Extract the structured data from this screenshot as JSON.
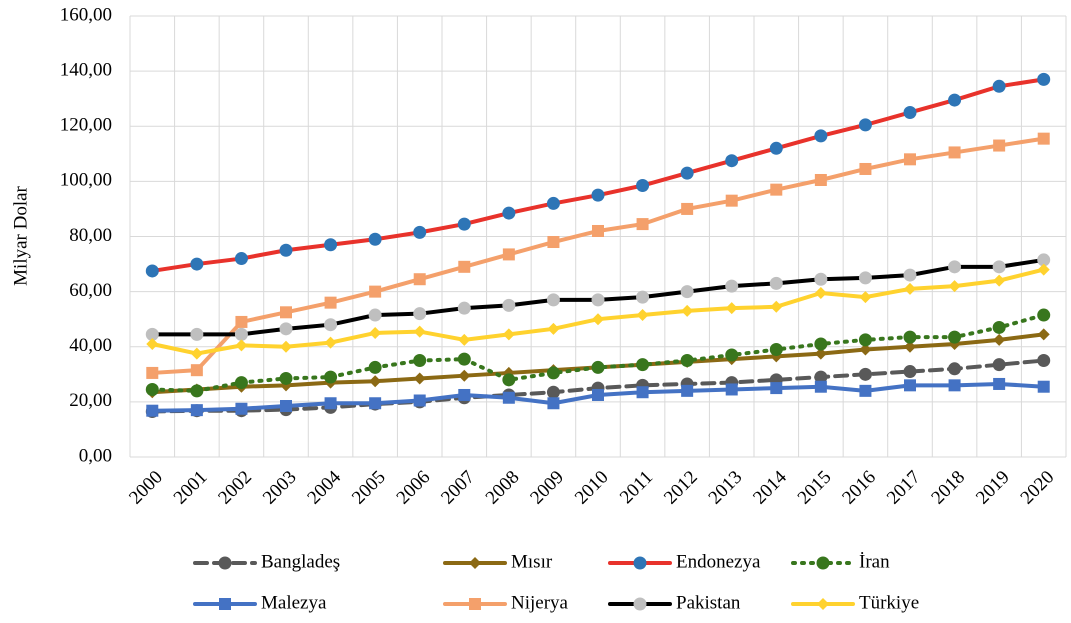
{
  "chart_data": {
    "type": "line",
    "y_label": "Milyar Dolar",
    "categories": [
      "2000",
      "2001",
      "2002",
      "2003",
      "2004",
      "2005",
      "2006",
      "2007",
      "2008",
      "2009",
      "2010",
      "2011",
      "2012",
      "2013",
      "2014",
      "2015",
      "2016",
      "2017",
      "2018",
      "2019",
      "2020"
    ],
    "ylim": [
      0,
      160
    ],
    "yticks": [
      {
        "value": 0,
        "label": "0,00"
      },
      {
        "value": 20,
        "label": "20,00"
      },
      {
        "value": 40,
        "label": "40,00"
      },
      {
        "value": 60,
        "label": "60,00"
      },
      {
        "value": 80,
        "label": "80,00"
      },
      {
        "value": 100,
        "label": "100,00"
      },
      {
        "value": 120,
        "label": "120,00"
      },
      {
        "value": 140,
        "label": "140,00"
      },
      {
        "value": 160,
        "label": "160,00"
      }
    ],
    "grid": true,
    "legend": "bottom",
    "series": [
      {
        "name": "Bangladeş",
        "color": "#595959",
        "marker_color": "#595959",
        "marker": "circle",
        "line_style": "dashed",
        "values": [
          16.5,
          16.8,
          16.8,
          17.2,
          18,
          19.2,
          20,
          21.5,
          22.5,
          23.5,
          25,
          26,
          26.5,
          27,
          28,
          29,
          30,
          31,
          32,
          33.5,
          35
        ]
      },
      {
        "name": "Mısır",
        "color": "#8b6914",
        "marker_color": "#8b6914",
        "marker": "diamond",
        "line_style": "solid",
        "values": [
          23.5,
          24.5,
          25.5,
          26,
          27,
          27.5,
          28.5,
          29.5,
          30.5,
          31.5,
          32.5,
          33.5,
          34.5,
          35.5,
          36.5,
          37.5,
          39,
          40,
          41,
          42.5,
          44.5
        ]
      },
      {
        "name": "Endonezya",
        "color": "#e8322b",
        "marker_color": "#2e75b6",
        "marker": "circle",
        "line_style": "solid",
        "values": [
          67.5,
          70,
          72,
          75,
          77,
          79,
          81.5,
          84.5,
          88.5,
          92,
          95,
          98.5,
          103,
          107.5,
          112,
          116.5,
          120.5,
          125,
          129.5,
          134.5,
          137
        ]
      },
      {
        "name": "İran",
        "color": "#38761d",
        "marker_color": "#38761d",
        "marker": "circle",
        "line_style": "dotted",
        "values": [
          24.5,
          24,
          27,
          28.5,
          29,
          32.5,
          35,
          35.5,
          28,
          30.5,
          32.5,
          33.5,
          35,
          37,
          39,
          41,
          42.5,
          43.5,
          43.5,
          47,
          51.5
        ]
      },
      {
        "name": "Malezya",
        "color": "#4472c4",
        "marker_color": "#4472c4",
        "marker": "square",
        "line_style": "solid",
        "values": [
          16.8,
          17,
          17.5,
          18.5,
          19.5,
          19.5,
          20.5,
          22.5,
          21.5,
          19.5,
          22.5,
          23.5,
          24,
          24.5,
          25,
          25.5,
          24,
          26,
          26,
          26.5,
          25.5
        ]
      },
      {
        "name": "Nijerya",
        "color": "#f4a06b",
        "marker_color": "#f4a06b",
        "marker": "square",
        "line_style": "solid",
        "values": [
          30.5,
          31.5,
          49,
          52.5,
          56,
          60,
          64.5,
          69,
          73.5,
          78,
          82,
          84.5,
          90,
          93,
          97,
          100.5,
          104.5,
          108,
          110.5,
          113,
          115.5
        ]
      },
      {
        "name": "Pakistan",
        "color": "#000000",
        "marker_color": "#bfbfbf",
        "marker": "circle",
        "line_style": "solid",
        "values": [
          44.5,
          44.5,
          44.5,
          46.5,
          48,
          51.5,
          52,
          54,
          55,
          57,
          57,
          58,
          60,
          62,
          63,
          64.5,
          65,
          66,
          69,
          69,
          71.5
        ]
      },
      {
        "name": "Türkiye",
        "color": "#ffd22e",
        "marker_color": "#ffd22e",
        "marker": "diamond",
        "line_style": "solid",
        "values": [
          41,
          37.5,
          40.5,
          40,
          41.5,
          45,
          45.5,
          42.5,
          44.5,
          46.5,
          50,
          51.5,
          53,
          54,
          54.5,
          59.5,
          58,
          61,
          62,
          64,
          68
        ]
      }
    ]
  }
}
